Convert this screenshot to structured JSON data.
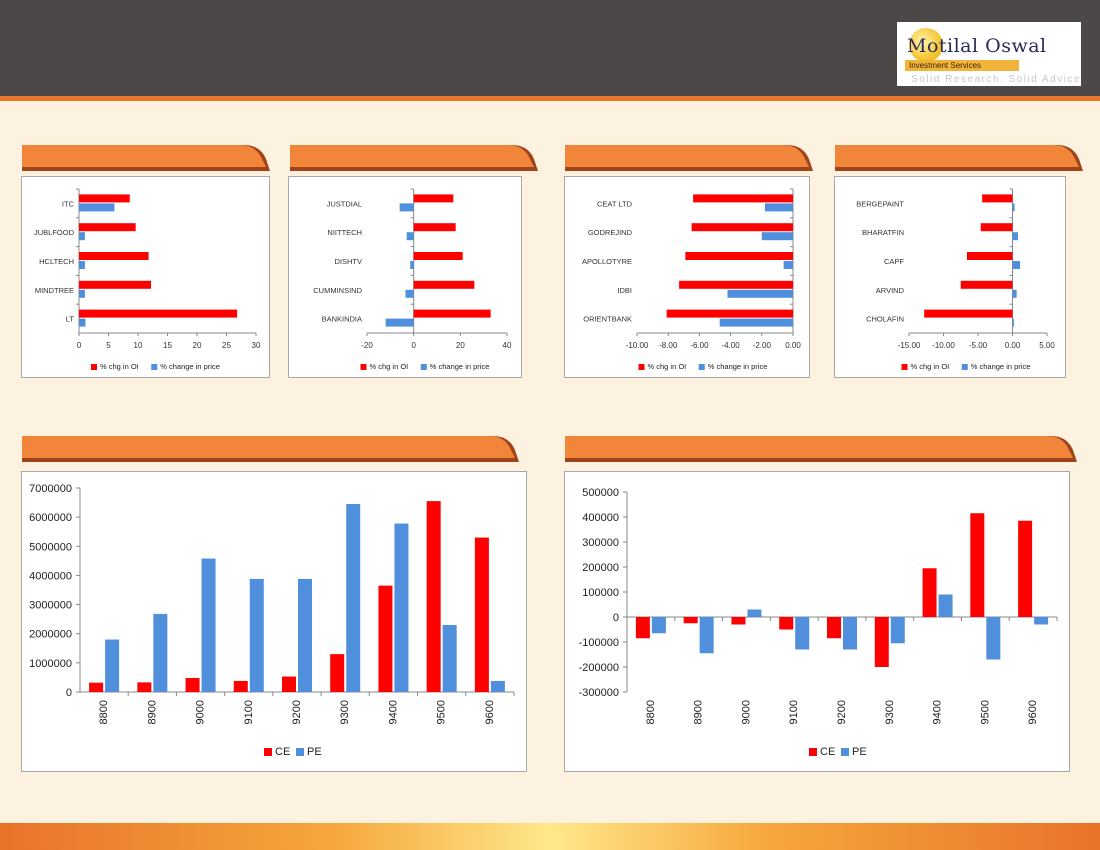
{
  "logo": {
    "brand": "Motilal Oswal",
    "sub": "Investment Services",
    "tagline": "Solid Research. Solid Advice"
  },
  "colors": {
    "red": "#ff0000",
    "blue": "#4f8fdc",
    "orange": "#f1863a",
    "dark_orange": "#a0421a",
    "header": "#4b4847"
  },
  "chart_data": [
    {
      "type": "bar",
      "orientation": "horizontal",
      "categories": [
        "ITC",
        "JUBLFOOD",
        "HCLTECH",
        "MINDTREE",
        "LT"
      ],
      "series": [
        {
          "name": "% chg in OI",
          "values": [
            8.6,
            9.6,
            11.8,
            12.2,
            26.8
          ]
        },
        {
          "name": "% change in price",
          "values": [
            6.0,
            1.0,
            1.0,
            1.0,
            1.1
          ]
        }
      ],
      "xlim": [
        0,
        30
      ],
      "xticks": [
        "0",
        "5",
        "10",
        "15",
        "20",
        "25",
        "30"
      ],
      "legend": "bottom"
    },
    {
      "type": "bar",
      "orientation": "horizontal",
      "categories": [
        "JUSTDIAL",
        "NIITTECH",
        "DISHTV",
        "CUMMINSIND",
        "BANKINDIA"
      ],
      "series": [
        {
          "name": "% chg in OI",
          "values": [
            17,
            18,
            21,
            26,
            33
          ]
        },
        {
          "name": "% change in price",
          "values": [
            -6,
            -3,
            -1.5,
            -3.5,
            -12
          ]
        }
      ],
      "xlim": [
        -20,
        40
      ],
      "xticks": [
        "-20",
        "0",
        "20",
        "40"
      ],
      "legend": "bottom"
    },
    {
      "type": "bar",
      "orientation": "horizontal",
      "categories": [
        "CEAT LTD",
        "GODREJIND",
        "APOLLOTYRE",
        "IDBI",
        "ORIENTBANK"
      ],
      "series": [
        {
          "name": "% chg in OI",
          "values": [
            -6.4,
            -6.5,
            -6.9,
            -7.3,
            -8.1
          ]
        },
        {
          "name": "% change in price",
          "values": [
            -1.8,
            -2.0,
            -0.6,
            -4.2,
            -4.7
          ]
        }
      ],
      "xlim": [
        -10,
        0
      ],
      "xticks": [
        "-10.00",
        "-8.00",
        "-6.00",
        "-4.00",
        "-2.00",
        "0.00"
      ],
      "legend": "bottom"
    },
    {
      "type": "bar",
      "orientation": "horizontal",
      "categories": [
        "BERGEPAINT",
        "BHARATFIN",
        "CAPF",
        "ARVIND",
        "CHOLAFIN"
      ],
      "series": [
        {
          "name": "% chg in OI",
          "values": [
            -4.4,
            -4.6,
            -6.6,
            -7.5,
            -12.8
          ]
        },
        {
          "name": "% change in price",
          "values": [
            0.3,
            0.8,
            1.1,
            0.6,
            0.2
          ]
        }
      ],
      "xlim": [
        -15,
        5
      ],
      "xticks": [
        "-15.00",
        "-10.00",
        "-5.00",
        "0.00",
        "5.00"
      ],
      "legend": "bottom"
    },
    {
      "type": "bar",
      "categories": [
        "8800",
        "8900",
        "9000",
        "9100",
        "9200",
        "9300",
        "9400",
        "9500",
        "9600"
      ],
      "series": [
        {
          "name": "CE",
          "values": [
            320000,
            330000,
            480000,
            380000,
            530000,
            1300000,
            3650000,
            6550000,
            5300000
          ]
        },
        {
          "name": "PE",
          "values": [
            1800000,
            2680000,
            4580000,
            3880000,
            3880000,
            6450000,
            5780000,
            2300000,
            380000
          ]
        }
      ],
      "ylim": [
        0,
        7000000
      ],
      "yticks": [
        "0",
        "1000000",
        "2000000",
        "3000000",
        "4000000",
        "5000000",
        "6000000",
        "7000000"
      ],
      "legend": "bottom"
    },
    {
      "type": "bar",
      "categories": [
        "8800",
        "8900",
        "9000",
        "9100",
        "9200",
        "9300",
        "9400",
        "9500",
        "9600"
      ],
      "series": [
        {
          "name": "CE",
          "values": [
            -85000,
            -25000,
            -30000,
            -50000,
            -85000,
            -200000,
            195000,
            415000,
            385000
          ]
        },
        {
          "name": "PE",
          "values": [
            -65000,
            -145000,
            30000,
            -130000,
            -130000,
            -105000,
            90000,
            -170000,
            -30000
          ]
        }
      ],
      "ylim": [
        -300000,
        500000
      ],
      "yticks": [
        "-300000",
        "-200000",
        "-100000",
        "0",
        "100000",
        "200000",
        "300000",
        "400000",
        "500000"
      ],
      "legend": "bottom"
    }
  ]
}
